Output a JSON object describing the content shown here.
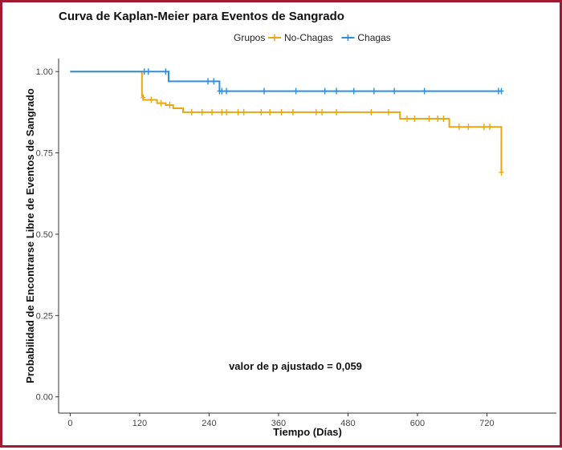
{
  "chart_data": {
    "type": "line",
    "step": true,
    "title": "Curva de Kaplan-Meier para Eventos de Sangrado",
    "xlabel": "Tiempo (Días)",
    "ylabel": "Probabilidad de Encontrarse Libre de Eventos de Sangrado",
    "legend": {
      "title": "Grupos",
      "position": "top",
      "entries": [
        "No-Chagas",
        "Chagas"
      ]
    },
    "x_ticks": [
      0,
      120,
      240,
      360,
      480,
      600,
      720
    ],
    "y_ticks": [
      "0.00",
      "0.25",
      "0.50",
      "0.75",
      "1.00"
    ],
    "xlim": [
      -20,
      840
    ],
    "ylim": [
      -0.05,
      1.04
    ],
    "grid": false,
    "annotation": "valor de p ajustado = 0,059",
    "colors": {
      "No-Chagas": "#E8A713",
      "Chagas": "#2D8FDF"
    },
    "series": [
      {
        "name": "No-Chagas",
        "color": "#E8A713",
        "steps": [
          [
            0,
            1.0
          ],
          [
            124,
            1.0
          ],
          [
            124,
            0.925
          ],
          [
            126,
            0.925
          ],
          [
            126,
            0.913
          ],
          [
            150,
            0.913
          ],
          [
            150,
            0.903
          ],
          [
            165,
            0.903
          ],
          [
            165,
            0.897
          ],
          [
            178,
            0.897
          ],
          [
            178,
            0.887
          ],
          [
            195,
            0.887
          ],
          [
            195,
            0.875
          ],
          [
            570,
            0.875
          ],
          [
            570,
            0.855
          ],
          [
            655,
            0.855
          ],
          [
            655,
            0.83
          ],
          [
            745,
            0.83
          ],
          [
            745,
            0.69
          ]
        ],
        "censored": [
          [
            126,
            0.92
          ],
          [
            140,
            0.913
          ],
          [
            157,
            0.903
          ],
          [
            172,
            0.897
          ],
          [
            210,
            0.875
          ],
          [
            228,
            0.875
          ],
          [
            245,
            0.875
          ],
          [
            262,
            0.875
          ],
          [
            270,
            0.875
          ],
          [
            290,
            0.875
          ],
          [
            300,
            0.875
          ],
          [
            330,
            0.875
          ],
          [
            345,
            0.875
          ],
          [
            365,
            0.875
          ],
          [
            385,
            0.875
          ],
          [
            425,
            0.875
          ],
          [
            435,
            0.875
          ],
          [
            460,
            0.875
          ],
          [
            520,
            0.875
          ],
          [
            550,
            0.875
          ],
          [
            582,
            0.855
          ],
          [
            595,
            0.855
          ],
          [
            620,
            0.855
          ],
          [
            635,
            0.855
          ],
          [
            645,
            0.855
          ],
          [
            672,
            0.83
          ],
          [
            688,
            0.83
          ],
          [
            715,
            0.83
          ],
          [
            725,
            0.83
          ],
          [
            745,
            0.69
          ]
        ]
      },
      {
        "name": "Chagas",
        "color": "#2D8FDF",
        "steps": [
          [
            0,
            1.0
          ],
          [
            170,
            1.0
          ],
          [
            170,
            0.97
          ],
          [
            258,
            0.97
          ],
          [
            258,
            0.94
          ],
          [
            745,
            0.94
          ]
        ],
        "censored": [
          [
            128,
            1.0
          ],
          [
            135,
            1.0
          ],
          [
            165,
            1.0
          ],
          [
            238,
            0.97
          ],
          [
            248,
            0.97
          ],
          [
            258,
            0.94
          ],
          [
            262,
            0.94
          ],
          [
            270,
            0.94
          ],
          [
            335,
            0.94
          ],
          [
            390,
            0.94
          ],
          [
            440,
            0.94
          ],
          [
            460,
            0.94
          ],
          [
            490,
            0.94
          ],
          [
            525,
            0.94
          ],
          [
            560,
            0.94
          ],
          [
            612,
            0.94
          ],
          [
            740,
            0.94
          ],
          [
            745,
            0.94
          ]
        ]
      }
    ]
  }
}
